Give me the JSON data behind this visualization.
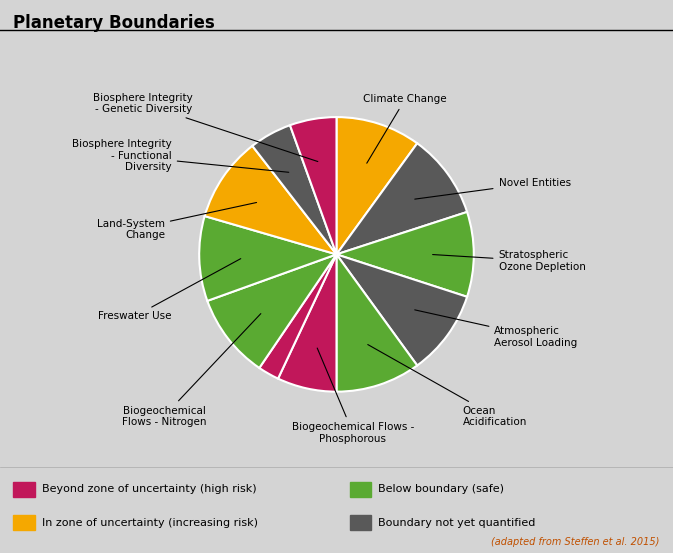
{
  "title": "Planetary Boundaries",
  "background_color": "#d4d4d4",
  "slices": [
    {
      "label": "Climate Change",
      "size": 40,
      "color": "#f5a800"
    },
    {
      "label": "Novel Entities",
      "size": 40,
      "color": "#595959"
    },
    {
      "label": "Stratospheric\nOzone Depletion",
      "size": 40,
      "color": "#5aaa32"
    },
    {
      "label": "Atmospheric\nAerosol Loading",
      "size": 40,
      "color": "#595959"
    },
    {
      "label": "Ocean\nAcidification",
      "size": 40,
      "color": "#5aaa32"
    },
    {
      "label": "Biogeochemical Flows -\nPhosphorous",
      "size": 28,
      "color": "#c1175a"
    },
    {
      "label": "",
      "size": 10,
      "color": "#c1175a"
    },
    {
      "label": "Biogeochemical\nFlows - Nitrogen",
      "size": 40,
      "color": "#5aaa32"
    },
    {
      "label": "Freswater Use",
      "size": 40,
      "color": "#5aaa32"
    },
    {
      "label": "Land-System\nChange",
      "size": 40,
      "color": "#f5a800"
    },
    {
      "label": "Biosphere Integrity\n- Functional\nDiversity",
      "size": 20,
      "color": "#595959"
    },
    {
      "label": "Biosphere Integrity\n- Genetic Diversity",
      "size": 22,
      "color": "#c1175a"
    }
  ],
  "legend": [
    {
      "label": "Beyond zone of uncertainty (high risk)",
      "color": "#c1175a"
    },
    {
      "label": "Below boundary (safe)",
      "color": "#5aaa32"
    },
    {
      "label": "In zone of uncertainty (increasing risk)",
      "color": "#f5a800"
    },
    {
      "label": "Boundary not yet quantified",
      "color": "#595959"
    }
  ],
  "attribution": "(adapted from Steffen et al. 2015)",
  "label_fontsize": 7.5,
  "title_fontsize": 12
}
